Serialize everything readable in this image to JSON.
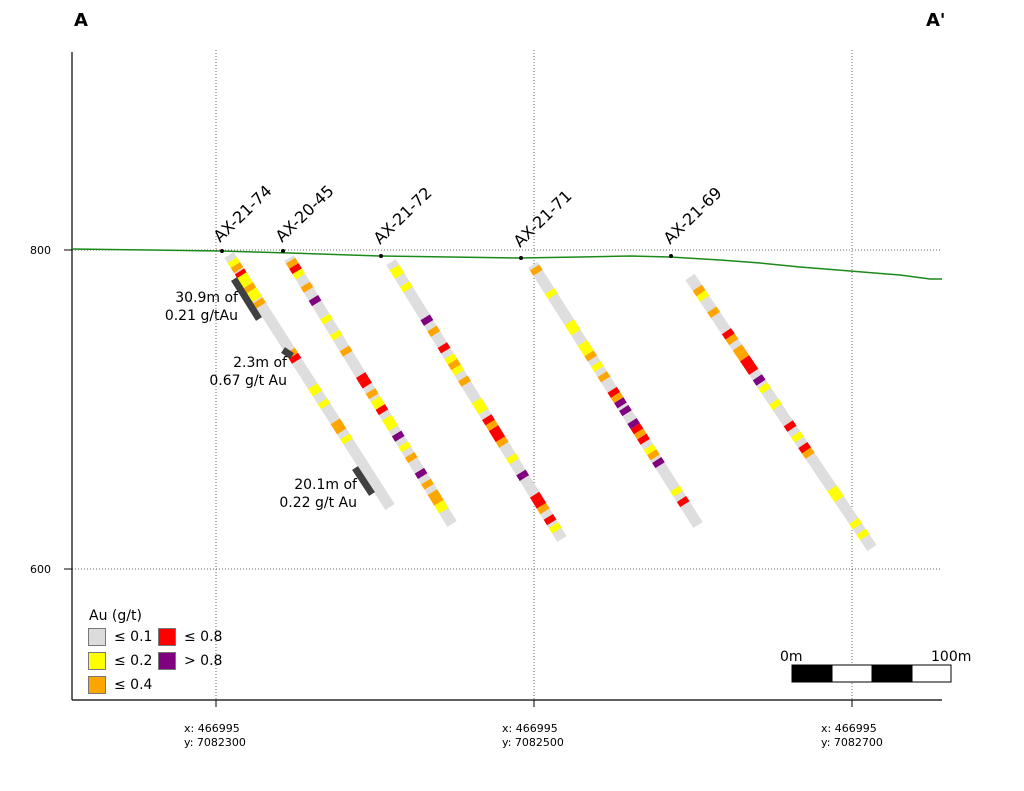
{
  "section": {
    "start_label": "A",
    "end_label": "A'",
    "elevation_labels": [
      "800",
      "600"
    ],
    "grid_coordinates": [
      {
        "x": "x: 466995",
        "y": "y: 7082300"
      },
      {
        "x": "x: 466995",
        "y": "y: 7082500"
      },
      {
        "x": "x: 466995",
        "y": "y: 7082700"
      }
    ]
  },
  "drillholes": [
    {
      "name": "AX-21-74"
    },
    {
      "name": "AX-20-45"
    },
    {
      "name": "AX-21-72"
    },
    {
      "name": "AX-21-71"
    },
    {
      "name": "AX-21-69"
    }
  ],
  "intercepts": [
    {
      "line1": "30.9m of",
      "line2": "0.21 g/tAu"
    },
    {
      "line1": "2.3m of",
      "line2": "0.67 g/t Au"
    },
    {
      "line1": "20.1m of",
      "line2": "0.22 g/t Au"
    }
  ],
  "legend": {
    "title": "Au (g/t)",
    "items": [
      {
        "label": "≤ 0.1",
        "color": "#dcdcdc"
      },
      {
        "label": "≤ 0.8",
        "color": "#ff0000"
      },
      {
        "label": "≤ 0.2",
        "color": "#ffff00"
      },
      {
        "label": "> 0.8",
        "color": "#800080"
      },
      {
        "label": "≤ 0.4",
        "color": "#ffa500"
      }
    ]
  },
  "scale_bar": {
    "left_label": "0m",
    "right_label": "100m"
  },
  "colors": {
    "topography": "#1a8a1a",
    "hole_trace": "#dedede",
    "intercept_bar": "#404040",
    "low": "#ffff00",
    "mid": "#ffa500",
    "high": "#ff0000",
    "very_high": "#800080"
  }
}
